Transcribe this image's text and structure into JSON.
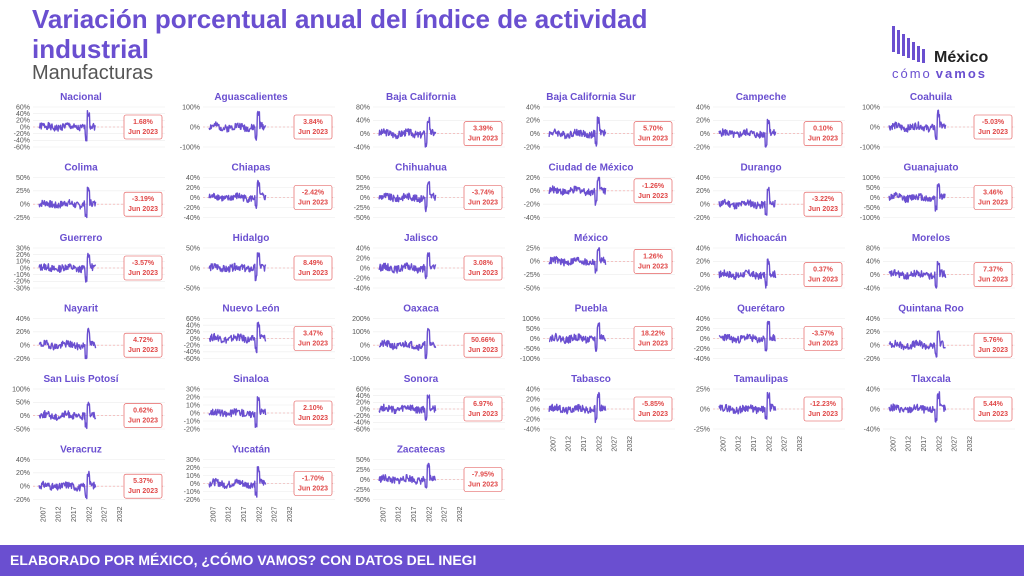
{
  "title": "Variación porcentual anual del índice de actividad industrial",
  "subtitle": "Manufacturas",
  "logo": {
    "line1": "México",
    "line2a": "cómo",
    "line2b": "vamos",
    "icon": "bar-logo-icon"
  },
  "footer": "ELABORADO POR MÉXICO, ¿CÓMO VAMOS? CON DATOS DEL INEGI",
  "colors": {
    "accent": "#6a4fd0",
    "series": "#6a4fd0",
    "label": "#e04848"
  },
  "chart_data": {
    "type": "line",
    "x_ticks": [
      "2007",
      "2012",
      "2017",
      "2022",
      "2027",
      "2032"
    ],
    "x_range": [
      2003,
      2033
    ],
    "date_label": "Jun 2023",
    "panels": [
      {
        "name": "Nacional",
        "value": "1.68%",
        "yticks": [
          "60%",
          "40%",
          "20%",
          "0%",
          "-20%",
          "-40%",
          "-60%"
        ],
        "ylim": [
          -60,
          60
        ]
      },
      {
        "name": "Aguascalientes",
        "value": "3.84%",
        "yticks": [
          "100%",
          "0%",
          "-100%"
        ],
        "ylim": [
          -100,
          100
        ]
      },
      {
        "name": "Baja California",
        "value": "3.39%",
        "yticks": [
          "80%",
          "40%",
          "0%",
          "-40%"
        ],
        "ylim": [
          -40,
          80
        ]
      },
      {
        "name": "Baja California Sur",
        "value": "5.70%",
        "yticks": [
          "40%",
          "20%",
          "0%",
          "-20%"
        ],
        "ylim": [
          -20,
          40
        ]
      },
      {
        "name": "Campeche",
        "value": "0.10%",
        "yticks": [
          "40%",
          "20%",
          "0%",
          "-20%"
        ],
        "ylim": [
          -20,
          40
        ]
      },
      {
        "name": "Coahuila",
        "value": "-5.03%",
        "yticks": [
          "100%",
          "0%",
          "-100%"
        ],
        "ylim": [
          -100,
          100
        ]
      },
      {
        "name": "Colima",
        "value": "-3.19%",
        "yticks": [
          "50%",
          "25%",
          "0%",
          "-25%"
        ],
        "ylim": [
          -25,
          50
        ]
      },
      {
        "name": "Chiapas",
        "value": "-2.42%",
        "yticks": [
          "40%",
          "20%",
          "0%",
          "-20%",
          "-40%"
        ],
        "ylim": [
          -40,
          40
        ]
      },
      {
        "name": "Chihuahua",
        "value": "-3.74%",
        "yticks": [
          "50%",
          "25%",
          "0%",
          "-25%",
          "-50%"
        ],
        "ylim": [
          -50,
          50
        ]
      },
      {
        "name": "Ciudad de México",
        "value": "-1.26%",
        "yticks": [
          "20%",
          "0%",
          "-20%",
          "-40%"
        ],
        "ylim": [
          -40,
          20
        ]
      },
      {
        "name": "Durango",
        "value": "-3.22%",
        "yticks": [
          "40%",
          "20%",
          "0%",
          "-20%"
        ],
        "ylim": [
          -20,
          40
        ]
      },
      {
        "name": "Guanajuato",
        "value": "3.46%",
        "yticks": [
          "100%",
          "50%",
          "0%",
          "-50%",
          "-100%"
        ],
        "ylim": [
          -100,
          100
        ]
      },
      {
        "name": "Guerrero",
        "value": "-3.57%",
        "yticks": [
          "30%",
          "20%",
          "10%",
          "0%",
          "-10%",
          "-20%",
          "-30%"
        ],
        "ylim": [
          -30,
          30
        ]
      },
      {
        "name": "Hidalgo",
        "value": "8.49%",
        "yticks": [
          "50%",
          "0%",
          "-50%"
        ],
        "ylim": [
          -50,
          50
        ]
      },
      {
        "name": "Jalisco",
        "value": "3.08%",
        "yticks": [
          "40%",
          "20%",
          "0%",
          "-20%",
          "-40%"
        ],
        "ylim": [
          -40,
          40
        ]
      },
      {
        "name": "México",
        "value": "1.26%",
        "yticks": [
          "25%",
          "0%",
          "-25%",
          "-50%"
        ],
        "ylim": [
          -50,
          25
        ]
      },
      {
        "name": "Michoacán",
        "value": "0.37%",
        "yticks": [
          "40%",
          "20%",
          "0%",
          "-20%"
        ],
        "ylim": [
          -20,
          40
        ]
      },
      {
        "name": "Morelos",
        "value": "7.37%",
        "yticks": [
          "80%",
          "40%",
          "0%",
          "-40%"
        ],
        "ylim": [
          -40,
          80
        ]
      },
      {
        "name": "Nayarit",
        "value": "4.72%",
        "yticks": [
          "40%",
          "20%",
          "0%",
          "-20%"
        ],
        "ylim": [
          -20,
          40
        ]
      },
      {
        "name": "Nuevo León",
        "value": "3.47%",
        "yticks": [
          "60%",
          "40%",
          "20%",
          "0%",
          "-20%",
          "-40%",
          "-60%"
        ],
        "ylim": [
          -60,
          60
        ]
      },
      {
        "name": "Oaxaca",
        "value": "50.66%",
        "yticks": [
          "200%",
          "100%",
          "0%",
          "-100%"
        ],
        "ylim": [
          -100,
          200
        ]
      },
      {
        "name": "Puebla",
        "value": "18.22%",
        "yticks": [
          "100%",
          "50%",
          "0%",
          "-50%",
          "-100%"
        ],
        "ylim": [
          -100,
          100
        ]
      },
      {
        "name": "Querétaro",
        "value": "-3.57%",
        "yticks": [
          "40%",
          "20%",
          "0%",
          "-20%",
          "-40%"
        ],
        "ylim": [
          -40,
          40
        ]
      },
      {
        "name": "Quintana Roo",
        "value": "5.76%",
        "yticks": [
          "40%",
          "20%",
          "0%",
          "-20%"
        ],
        "ylim": [
          -20,
          40
        ]
      },
      {
        "name": "San Luis Potosí",
        "value": "0.62%",
        "yticks": [
          "100%",
          "50%",
          "0%",
          "-50%"
        ],
        "ylim": [
          -50,
          100
        ]
      },
      {
        "name": "Sinaloa",
        "value": "2.10%",
        "yticks": [
          "30%",
          "20%",
          "10%",
          "0%",
          "-10%",
          "-20%"
        ],
        "ylim": [
          -20,
          30
        ]
      },
      {
        "name": "Sonora",
        "value": "6.97%",
        "yticks": [
          "60%",
          "40%",
          "20%",
          "0%",
          "-20%",
          "-40%",
          "-60%"
        ],
        "ylim": [
          -60,
          60
        ]
      },
      {
        "name": "Tabasco",
        "value": "-5.85%",
        "yticks": [
          "40%",
          "20%",
          "0%",
          "-20%",
          "-40%"
        ],
        "ylim": [
          -40,
          40
        ]
      },
      {
        "name": "Tamaulipas",
        "value": "-12.23%",
        "yticks": [
          "25%",
          "0%",
          "-25%"
        ],
        "ylim": [
          -25,
          25
        ]
      },
      {
        "name": "Tlaxcala",
        "value": "5.44%",
        "yticks": [
          "40%",
          "0%",
          "-40%"
        ],
        "ylim": [
          -40,
          40
        ]
      },
      {
        "name": "Veracruz",
        "value": "5.37%",
        "yticks": [
          "40%",
          "20%",
          "0%",
          "-20%"
        ],
        "ylim": [
          -20,
          40
        ]
      },
      {
        "name": "Yucatán",
        "value": "-1.70%",
        "yticks": [
          "30%",
          "20%",
          "10%",
          "0%",
          "-10%",
          "-20%"
        ],
        "ylim": [
          -20,
          30
        ]
      },
      {
        "name": "Zacatecas",
        "value": "-7.95%",
        "yticks": [
          "50%",
          "25%",
          "0%",
          "-25%",
          "-50%"
        ],
        "ylim": [
          -50,
          50
        ]
      }
    ]
  }
}
